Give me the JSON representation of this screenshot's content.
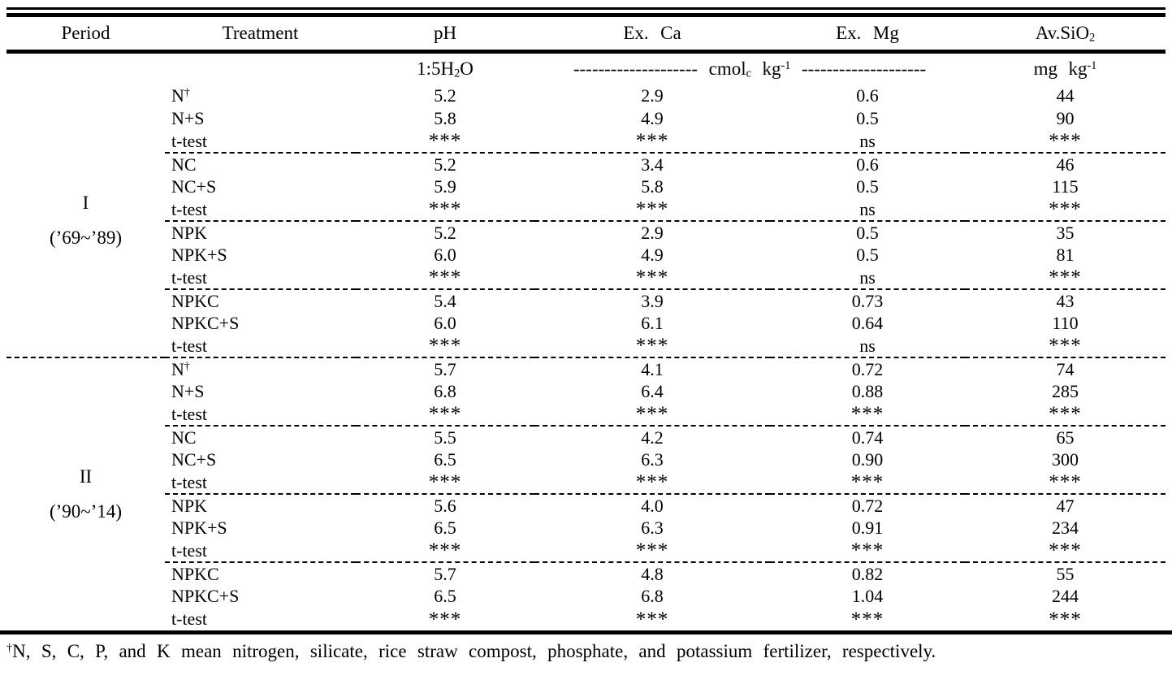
{
  "table": {
    "headers": {
      "period": "Period",
      "treatment": "Treatment",
      "ph": "pH",
      "ex_ca": "Ex. Ca",
      "ex_mg": "Ex. Mg",
      "av_sio2_base": "Av.SiO",
      "av_sio2_sub": "2"
    },
    "units": {
      "ph_pre": "1:5H",
      "ph_sub": "2",
      "ph_post": "O",
      "dash_left": "-------------------- ",
      "cmol_base": "cmol",
      "cmol_sub": "c",
      "kg": " kg",
      "kg_sup": "-1",
      "dash_right": " --------------------",
      "mg_base": "mg kg",
      "mg_sup": "-1"
    },
    "periods": [
      {
        "label": "I",
        "range": "(’69~’89)",
        "rows": [
          {
            "t": "N",
            "sup": "†",
            "ph": "5.2",
            "ca": "2.9",
            "mg": "0.6",
            "sio2": "44"
          },
          {
            "t": "N+S",
            "ph": "5.8",
            "ca": "4.9",
            "mg": "0.5",
            "sio2": "90"
          },
          {
            "t": "t-test",
            "ph": "***",
            "ca": "***",
            "mg": "ns",
            "sio2": "***",
            "sep": true
          },
          {
            "t": "NC",
            "ph": "5.2",
            "ca": "3.4",
            "mg": "0.6",
            "sio2": "46"
          },
          {
            "t": "NC+S",
            "ph": "5.9",
            "ca": "5.8",
            "mg": "0.5",
            "sio2": "115"
          },
          {
            "t": "t-test",
            "ph": "***",
            "ca": "***",
            "mg": "ns",
            "sio2": "***",
            "sep": true
          },
          {
            "t": "NPK",
            "ph": "5.2",
            "ca": "2.9",
            "mg": "0.5",
            "sio2": "35"
          },
          {
            "t": "NPK+S",
            "ph": "6.0",
            "ca": "4.9",
            "mg": "0.5",
            "sio2": "81"
          },
          {
            "t": "t-test",
            "ph": "***",
            "ca": "***",
            "mg": "ns",
            "sio2": "***",
            "sep": true
          },
          {
            "t": "NPKC",
            "ph": "5.4",
            "ca": "3.9",
            "mg": "0.73",
            "sio2": "43"
          },
          {
            "t": "NPKC+S",
            "ph": "6.0",
            "ca": "6.1",
            "mg": "0.64",
            "sio2": "110"
          },
          {
            "t": "t-test",
            "ph": "***",
            "ca": "***",
            "mg": "ns",
            "sio2": "***",
            "sep": true
          }
        ]
      },
      {
        "label": "II",
        "range": "(’90~’14)",
        "rows": [
          {
            "t": "N",
            "sup": "†",
            "ph": "5.7",
            "ca": "4.1",
            "mg": "0.72",
            "sio2": "74"
          },
          {
            "t": "N+S",
            "ph": "6.8",
            "ca": "6.4",
            "mg": "0.88",
            "sio2": "285"
          },
          {
            "t": "t-test",
            "ph": "***",
            "ca": "***",
            "mg": "***",
            "sio2": "***",
            "sep": true
          },
          {
            "t": "NC",
            "ph": "5.5",
            "ca": "4.2",
            "mg": "0.74",
            "sio2": "65"
          },
          {
            "t": "NC+S",
            "ph": "6.5",
            "ca": "6.3",
            "mg": "0.90",
            "sio2": "300"
          },
          {
            "t": "t-test",
            "ph": "***",
            "ca": "***",
            "mg": "***",
            "sio2": "***",
            "sep": true
          },
          {
            "t": "NPK",
            "ph": "5.6",
            "ca": "4.0",
            "mg": "0.72",
            "sio2": "47"
          },
          {
            "t": "NPK+S",
            "ph": "6.5",
            "ca": "6.3",
            "mg": "0.91",
            "sio2": "234"
          },
          {
            "t": "t-test",
            "ph": "***",
            "ca": "***",
            "mg": "***",
            "sio2": "***",
            "sep": true
          },
          {
            "t": "NPKC",
            "ph": "5.7",
            "ca": "4.8",
            "mg": "0.82",
            "sio2": "55"
          },
          {
            "t": "NPKC+S",
            "ph": "6.5",
            "ca": "6.8",
            "mg": "1.04",
            "sio2": "244"
          },
          {
            "t": "t-test",
            "ph": "***",
            "ca": "***",
            "mg": "***",
            "sio2": "***"
          }
        ]
      }
    ]
  },
  "footnote": {
    "sup": "†",
    "text": "N, S, C, P, and K mean nitrogen, silicate, rice straw compost, phosphate, and potassium fertilizer, respectively."
  }
}
